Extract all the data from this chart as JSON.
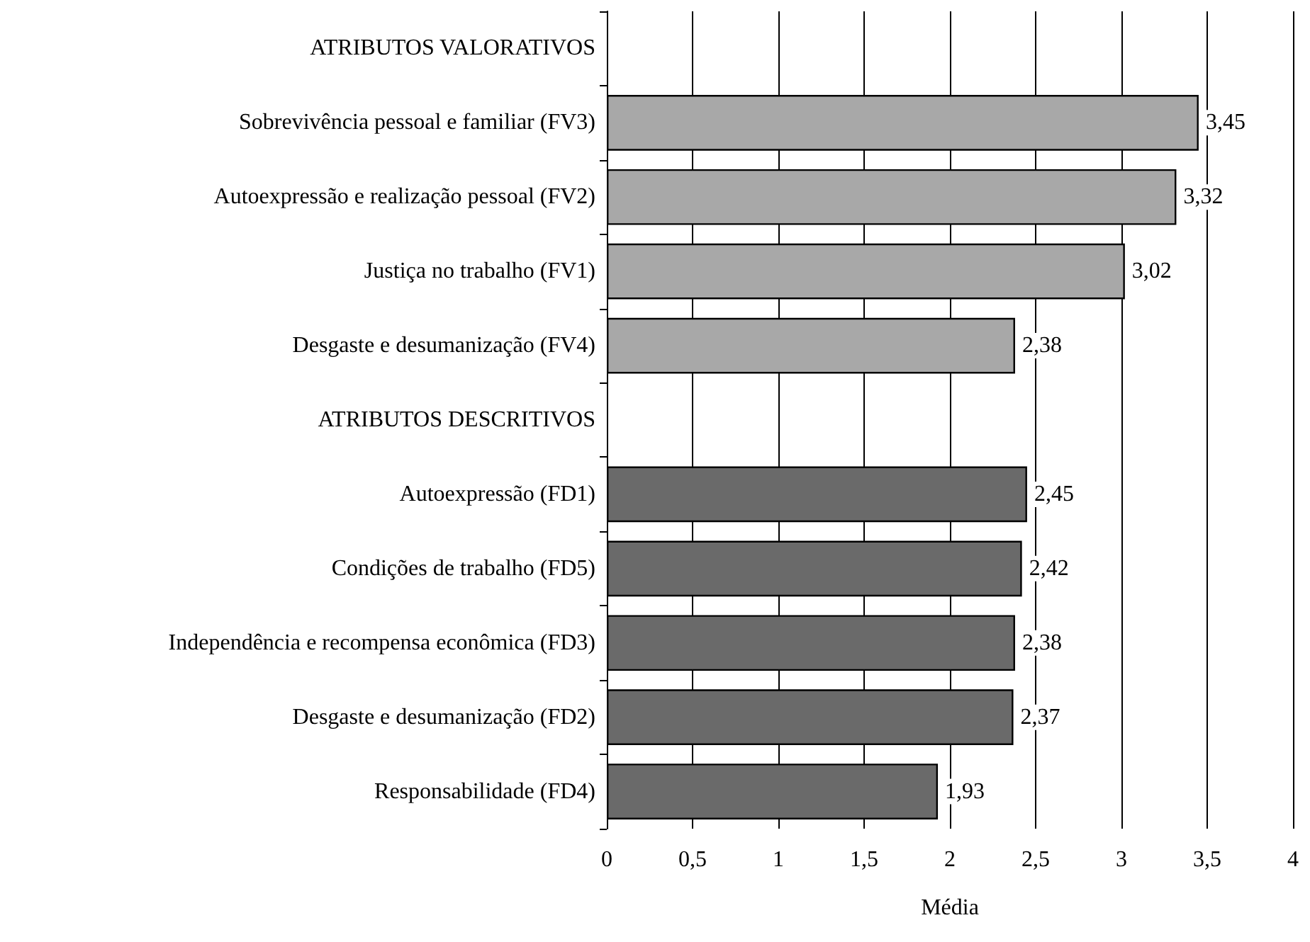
{
  "chart_data": {
    "type": "bar",
    "orientation": "horizontal",
    "stacked": true,
    "xlabel": "Média",
    "categories": [
      "ATRIBUTOS VALORATIVOS",
      "Sobrevivência pessoal e familiar (FV3)",
      "Autoexpressão e realização pessoal (FV2)",
      "Justiça no trabalho (FV1)",
      "Desgaste e desumanização (FV4)",
      "ATRIBUTOS DESCRITIVOS",
      "Autoexpressão (FD1)",
      "Condições de trabalho (FD5)",
      "Independência e recompensa econômica (FD3)",
      "Desgaste e desumanização (FD2)",
      "Responsabilidade (FD4)"
    ],
    "series": [
      {
        "color": "#a8a8a8",
        "values": [
          null,
          3.45,
          3.32,
          3.02,
          2.38,
          null,
          null,
          null,
          null,
          null,
          null
        ],
        "value_labels": [
          null,
          "3,45",
          "3,32",
          "3,02",
          "2,38",
          null,
          null,
          null,
          null,
          null,
          null
        ]
      },
      {
        "color": "#6a6a6a",
        "values": [
          null,
          null,
          null,
          null,
          null,
          null,
          2.45,
          2.42,
          2.38,
          2.37,
          1.93
        ],
        "value_labels": [
          null,
          null,
          null,
          null,
          null,
          null,
          "2,45",
          "2,42",
          "2,38",
          "2,37",
          "1,93"
        ]
      }
    ],
    "xlim": [
      0,
      4
    ],
    "xticks": [
      0,
      {
        "value": 0.5,
        "label": "0,5"
      },
      1,
      {
        "value": 1.5,
        "label": "1,5"
      },
      2,
      {
        "value": 2.5,
        "label": "2,5"
      },
      3,
      {
        "value": 3.5,
        "label": "3,5"
      },
      4
    ],
    "grid": "x"
  }
}
